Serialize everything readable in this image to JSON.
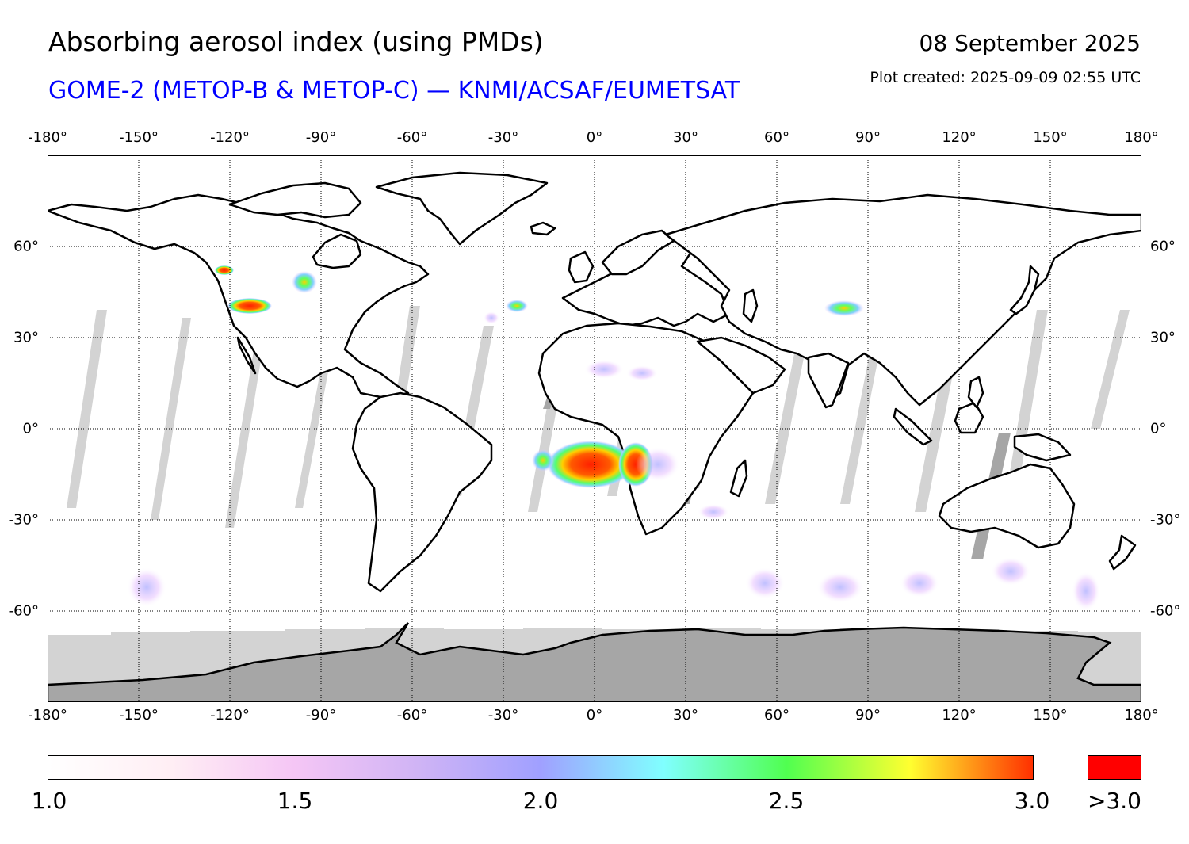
{
  "header": {
    "title": "Absorbing aerosol index (using PMDs)",
    "subtitle": "GOME-2 (METOP-B & METOP-C) — KNMI/ACSAF/EUMETSAT",
    "date": "08 September 2025",
    "created": "Plot created: 2025-09-09 02:55 UTC"
  },
  "map": {
    "projection": "plate-carree",
    "lon_range": [
      -180,
      180
    ],
    "lat_range": [
      -90,
      90
    ],
    "grid": true,
    "lon_ticks": [
      "-180°",
      "-150°",
      "-120°",
      "-90°",
      "-60°",
      "-30°",
      "0°",
      "30°",
      "60°",
      "90°",
      "120°",
      "150°",
      "180°"
    ],
    "lat_ticks": [
      "60°",
      "30°",
      "0°",
      "-30°",
      "-60°"
    ],
    "colors": {
      "no_data_light": "#d3d3d3",
      "no_data_dark": "#a6a6a6",
      "coastline": "#000000",
      "saturated": "#ff0000"
    },
    "hotspots": [
      {
        "region": "southern Africa (Angola/Congo)",
        "lon": 2,
        "lat": -11,
        "aai": ">3.0"
      },
      {
        "region": "southern Africa (Angola coast)",
        "lon": 13,
        "lat": -12,
        "aai": ">3.0"
      },
      {
        "region": "western North America",
        "lon": -117,
        "lat": 41,
        "aai": ">3.0"
      },
      {
        "region": "western Canada",
        "lon": -121,
        "lat": 54,
        "aai": ">3.0"
      },
      {
        "region": "central Canada",
        "lon": -97,
        "lat": 49,
        "aai": "2.5"
      },
      {
        "region": "central Asia",
        "lon": 82,
        "lat": 40,
        "aai": "2.7"
      },
      {
        "region": "mid-Atlantic",
        "lon": -25,
        "lat": 40,
        "aai": "2.5"
      }
    ]
  },
  "colorbar": {
    "min": 1.0,
    "max": 3.0,
    "ticks": [
      "1.0",
      "1.5",
      "2.0",
      "2.5",
      "3.0"
    ],
    "over_label": ">3.0",
    "stops": [
      "#ffffff",
      "#ffeef4",
      "#f5c6f5",
      "#d0b4f5",
      "#a0a0ff",
      "#80ffff",
      "#50ff50",
      "#ffff30",
      "#ff3000"
    ]
  }
}
